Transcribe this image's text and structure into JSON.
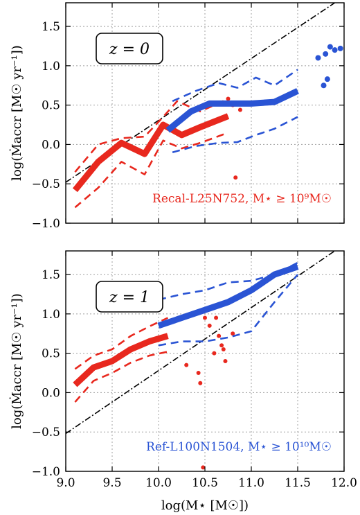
{
  "figure": {
    "xlabel": "log(M⋆ [M☉])",
    "ylabel": "log(Ṁaccr [M☉ yr⁻¹])"
  },
  "colors": {
    "red": "#e8281e",
    "blue": "#2a54d4",
    "grid": "#a0a0a0"
  },
  "chart_data": [
    {
      "type": "line",
      "panel_label": "z = 0",
      "annotation": "Recal-L25N752, M⋆ ≥ 10⁹M☉",
      "annotation_color": "#e8281e",
      "xlim": [
        9.0,
        12.0
      ],
      "ylim": [
        -1.0,
        1.8
      ],
      "xticks": [
        "9.0",
        "9.5",
        "10.0",
        "10.5",
        "11.0",
        "11.5",
        "12.0"
      ],
      "yticks": [
        "-1.0",
        "-0.5",
        "0.0",
        "0.5",
        "1.0",
        "1.5"
      ],
      "grid": true,
      "reference_line": {
        "style": "dash-dot",
        "x": [
          9.0,
          11.9
        ],
        "y": [
          -0.48,
          1.8
        ]
      },
      "series": [
        {
          "color": "red",
          "style": "median",
          "x": [
            9.1,
            9.35,
            9.6,
            9.85,
            10.05,
            10.25,
            10.45,
            10.75
          ],
          "y": [
            -0.58,
            -0.22,
            0.02,
            -0.12,
            0.25,
            0.12,
            0.22,
            0.36
          ]
        },
        {
          "color": "red",
          "style": "percentile",
          "x": [
            9.1,
            9.35,
            9.6,
            9.85,
            10.05,
            10.2,
            10.45,
            10.75
          ],
          "y": [
            -0.35,
            0.0,
            0.08,
            0.1,
            0.35,
            0.55,
            0.42,
            0.58
          ]
        },
        {
          "color": "red",
          "style": "percentile",
          "x": [
            9.1,
            9.35,
            9.6,
            9.85,
            10.05,
            10.25,
            10.45,
            10.75
          ],
          "y": [
            -0.8,
            -0.55,
            -0.22,
            -0.38,
            0.05,
            -0.05,
            0.02,
            0.15
          ]
        },
        {
          "color": "red",
          "style": "points",
          "x": [
            10.75,
            10.8,
            10.83,
            10.88
          ],
          "y": [
            0.58,
            0.5,
            -0.42,
            0.44
          ]
        },
        {
          "color": "blue",
          "style": "median",
          "x": [
            10.1,
            10.35,
            10.55,
            10.75,
            11.0,
            11.25,
            11.5
          ],
          "y": [
            0.18,
            0.42,
            0.52,
            0.52,
            0.52,
            0.54,
            0.68
          ]
        },
        {
          "color": "blue",
          "style": "percentile",
          "x": [
            10.15,
            10.4,
            10.65,
            10.85,
            11.05,
            11.25,
            11.5
          ],
          "y": [
            0.55,
            0.68,
            0.78,
            0.72,
            0.85,
            0.75,
            0.95
          ]
        },
        {
          "color": "blue",
          "style": "percentile",
          "x": [
            10.15,
            10.4,
            10.65,
            10.85,
            11.05,
            11.25,
            11.5
          ],
          "y": [
            -0.1,
            -0.02,
            0.02,
            0.03,
            0.12,
            0.2,
            0.35
          ]
        },
        {
          "color": "blue",
          "style": "points",
          "x": [
            11.72,
            11.8,
            11.85,
            11.9,
            11.96,
            11.82
          ],
          "y": [
            1.1,
            1.15,
            1.24,
            1.2,
            1.22,
            0.83
          ]
        },
        {
          "color": "blue",
          "style": "points",
          "x": [
            11.78
          ],
          "y": [
            0.75
          ]
        }
      ]
    },
    {
      "type": "line",
      "panel_label": "z = 1",
      "annotation": "Ref-L100N1504, M⋆ ≥ 10¹⁰M☉",
      "annotation_color": "#2a54d4",
      "xlim": [
        9.0,
        12.0
      ],
      "ylim": [
        -1.0,
        1.8
      ],
      "xticks": [
        "9.0",
        "9.5",
        "10.0",
        "10.5",
        "11.0",
        "11.5",
        "12.0"
      ],
      "yticks": [
        "-1.0",
        "-0.5",
        "0.0",
        "0.5",
        "1.0",
        "1.5"
      ],
      "grid": true,
      "reference_line": {
        "style": "dash-dot",
        "x": [
          9.0,
          11.9
        ],
        "y": [
          -0.52,
          1.8
        ]
      },
      "series": [
        {
          "color": "red",
          "style": "median",
          "x": [
            9.1,
            9.3,
            9.5,
            9.7,
            9.9,
            10.1
          ],
          "y": [
            0.1,
            0.32,
            0.4,
            0.55,
            0.65,
            0.72
          ]
        },
        {
          "color": "red",
          "style": "percentile",
          "x": [
            9.1,
            9.3,
            9.5,
            9.7,
            9.9,
            10.1
          ],
          "y": [
            0.3,
            0.47,
            0.55,
            0.72,
            0.84,
            0.95
          ]
        },
        {
          "color": "red",
          "style": "percentile",
          "x": [
            9.1,
            9.3,
            9.5,
            9.7,
            9.9,
            10.1
          ],
          "y": [
            -0.12,
            0.15,
            0.25,
            0.38,
            0.47,
            0.52
          ]
        },
        {
          "color": "red",
          "style": "points",
          "x": [
            10.3,
            10.43,
            10.45,
            10.48,
            10.55,
            10.62,
            10.65,
            10.68,
            10.7,
            10.72,
            10.6,
            10.8,
            10.5
          ],
          "y": [
            0.35,
            0.25,
            0.12,
            -0.95,
            0.85,
            0.95,
            0.72,
            0.6,
            0.55,
            0.4,
            0.5,
            0.75,
            0.95
          ]
        },
        {
          "color": "blue",
          "style": "median",
          "x": [
            10.0,
            10.25,
            10.5,
            10.75,
            11.0,
            11.25,
            11.5
          ],
          "y": [
            0.85,
            0.95,
            1.05,
            1.15,
            1.3,
            1.5,
            1.6
          ]
        },
        {
          "color": "blue",
          "style": "percentile",
          "x": [
            10.0,
            10.25,
            10.5,
            10.75,
            11.0,
            11.25,
            11.5
          ],
          "y": [
            1.18,
            1.25,
            1.3,
            1.4,
            1.42,
            1.5,
            1.65
          ]
        },
        {
          "color": "blue",
          "style": "percentile",
          "x": [
            10.0,
            10.25,
            10.5,
            10.75,
            11.0,
            11.25,
            11.5
          ],
          "y": [
            0.6,
            0.65,
            0.65,
            0.7,
            0.78,
            1.15,
            1.5
          ]
        }
      ]
    }
  ]
}
